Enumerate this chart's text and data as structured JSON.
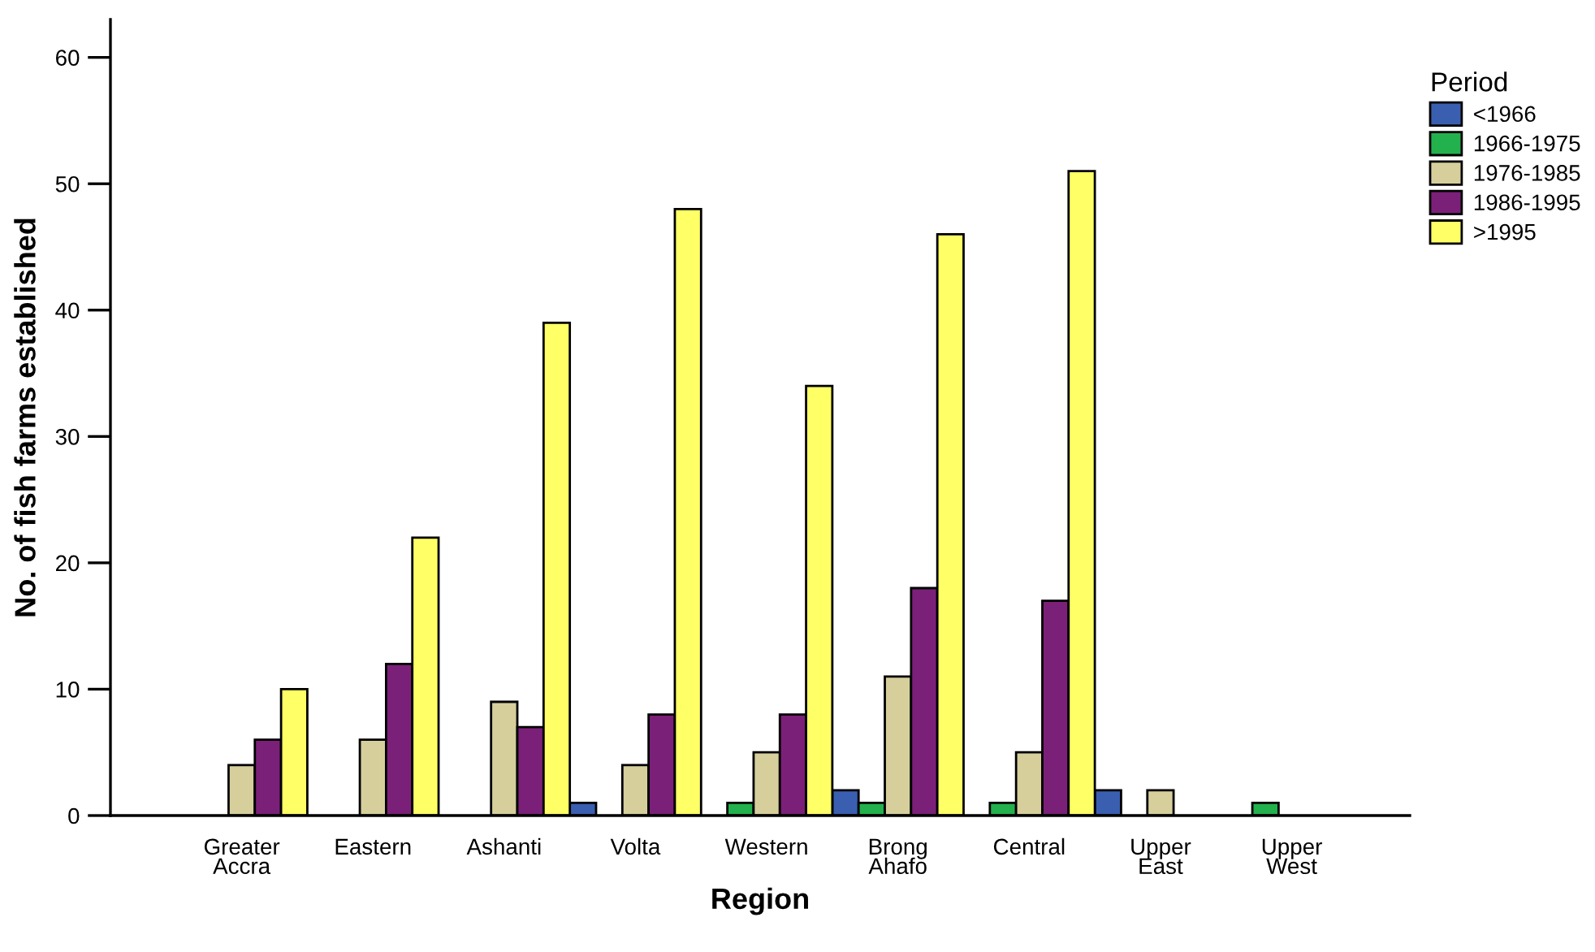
{
  "chart_data": {
    "type": "bar",
    "xlabel": "Region",
    "ylabel": "No. of fish farms established",
    "legend_title": "Period",
    "categories": [
      "Greater\nAccra",
      "Eastern",
      "Ashanti",
      "Volta",
      "Western",
      "Brong\nAhafo",
      "Central",
      "Upper\nEast",
      "Upper\nWest"
    ],
    "series": [
      {
        "name": "<1966",
        "color": "#3a5fb0",
        "values": [
          null,
          null,
          null,
          1,
          null,
          2,
          null,
          2,
          null
        ]
      },
      {
        "name": "1966-1975",
        "color": "#23b14d",
        "values": [
          null,
          null,
          null,
          null,
          1,
          1,
          1,
          null,
          1
        ]
      },
      {
        "name": "1976-1985",
        "color": "#d6cf9c",
        "values": [
          4,
          6,
          9,
          4,
          5,
          11,
          5,
          2,
          null
        ]
      },
      {
        "name": "1986-1995",
        "color": "#7b2078",
        "values": [
          6,
          12,
          7,
          8,
          8,
          18,
          17,
          null,
          null
        ]
      },
      {
        "name": ">1995",
        "color": "#ffff66",
        "values": [
          10,
          22,
          39,
          48,
          34,
          46,
          51,
          null,
          null
        ]
      }
    ],
    "ylim": [
      0,
      63
    ],
    "yticks": [
      0,
      10,
      20,
      30,
      40,
      50,
      60
    ],
    "grid": false,
    "legend": "right"
  }
}
